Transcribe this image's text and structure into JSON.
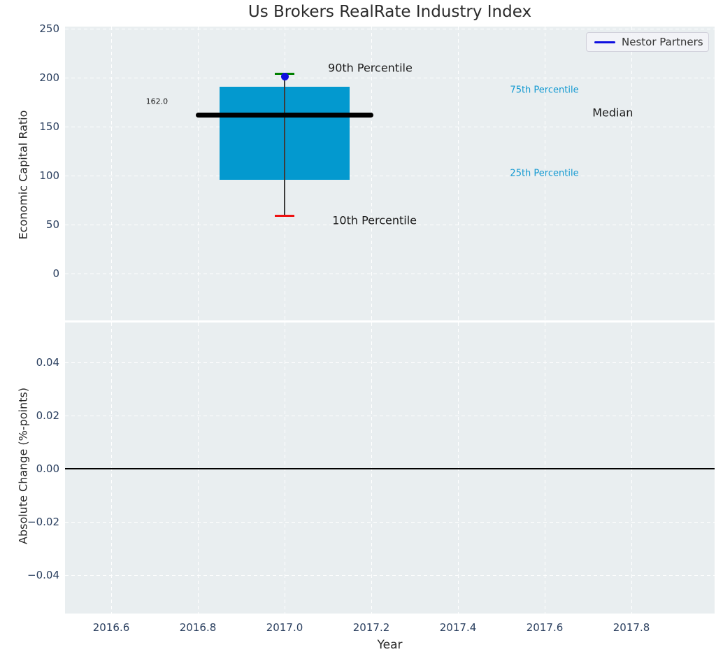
{
  "title": "Us Brokers RealRate Industry Index",
  "legend": {
    "items": [
      {
        "label": "Nestor Partners",
        "color": "#0f0fe0"
      }
    ]
  },
  "x_axis": {
    "label": "Year",
    "ticks": [
      2016.6,
      2016.8,
      2017.0,
      2017.2,
      2017.4,
      2017.6,
      2017.8
    ],
    "tick_labels": [
      "2016.6",
      "2016.8",
      "2017.0",
      "2017.2",
      "2017.4",
      "2017.6",
      "2017.8"
    ],
    "xlim": [
      2016.4935,
      2017.9919
    ]
  },
  "chart_data": [
    {
      "type": "box",
      "title": "Us Brokers RealRate Industry Index",
      "ylabel": "Economic Capital Ratio",
      "ylim": [
        -47.9,
        252.1
      ],
      "yticks": [
        250,
        200,
        150,
        100,
        50,
        0
      ],
      "ytick_labels": [
        "250",
        "200",
        "150",
        "100",
        "50",
        "0"
      ],
      "grid": true,
      "x": 2017.0,
      "box": {
        "p10": 59,
        "p25": 96,
        "median": 162.0,
        "p75": 191,
        "p90": 204,
        "box_width": 0.3,
        "median_line_width": 0.41,
        "cap_width": 0.045
      },
      "median_value_label": "162.0",
      "company_point": {
        "name": "Nestor Partners",
        "x": 2017.0,
        "y": 201
      },
      "annotations": [
        {
          "text": "90th Percentile",
          "x": 2017.1,
          "y": 210,
          "color": "#1a1a1a",
          "size": 16
        },
        {
          "text": "10th Percentile",
          "x": 2017.11,
          "y": 54,
          "color": "#1a1a1a",
          "size": 16
        },
        {
          "text": "75th Percentile",
          "x": 2017.52,
          "y": 187,
          "color": "#1399d1",
          "size": 13
        },
        {
          "text": "Median",
          "x": 2017.71,
          "y": 164,
          "color": "#1a1a1a",
          "size": 16
        },
        {
          "text": "25th Percentile",
          "x": 2017.52,
          "y": 102,
          "color": "#1399d1",
          "size": 13
        },
        {
          "text": "162.0",
          "x": 2016.68,
          "y": 176,
          "color": "#1a1a1a",
          "size": 11
        }
      ],
      "colors": {
        "box_fill": "#0399cf",
        "median_line": "#000000",
        "whisker": "#3c3c3c",
        "cap_top": "#008000",
        "cap_bottom": "#ee1111",
        "company_point": "#0f0fe0"
      }
    },
    {
      "type": "line",
      "ylabel": "Absolute Change (%-points)",
      "ylim": [
        -0.0545,
        0.055
      ],
      "yticks": [
        0.04,
        0.02,
        0.0,
        -0.02,
        -0.04
      ],
      "ytick_labels": [
        "0.04",
        "0.02",
        "0.00",
        "−0.02",
        "−0.04"
      ],
      "zero_line": 0.0,
      "zero_line_color": "#000000",
      "series": [],
      "grid": true
    }
  ],
  "theme": {
    "plot_bg": "#e9eef0",
    "grid_color": "#ffffff",
    "tick_color": "#2a3f5f",
    "text_color": "#262626"
  }
}
